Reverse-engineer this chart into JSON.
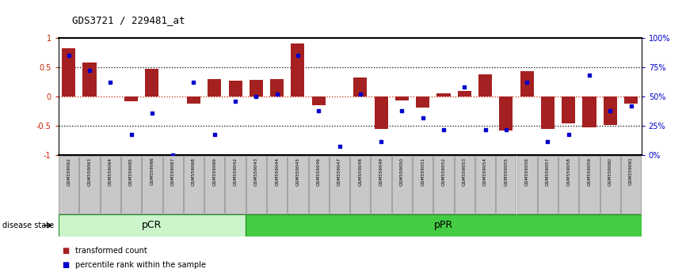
{
  "title": "GDS3721 / 229481_at",
  "samples": [
    "GSM559062",
    "GSM559063",
    "GSM559064",
    "GSM559065",
    "GSM559066",
    "GSM559067",
    "GSM559068",
    "GSM559069",
    "GSM559042",
    "GSM559043",
    "GSM559044",
    "GSM559045",
    "GSM559046",
    "GSM559047",
    "GSM559048",
    "GSM559049",
    "GSM559050",
    "GSM559051",
    "GSM559052",
    "GSM559053",
    "GSM559054",
    "GSM559055",
    "GSM559056",
    "GSM559057",
    "GSM559058",
    "GSM559059",
    "GSM559060",
    "GSM559061"
  ],
  "red_bars": [
    0.82,
    0.58,
    0.0,
    -0.08,
    0.47,
    0.0,
    -0.12,
    0.3,
    0.27,
    0.28,
    0.3,
    0.9,
    -0.15,
    0.0,
    0.32,
    -0.55,
    -0.06,
    -0.18,
    0.05,
    0.1,
    0.38,
    -0.58,
    0.43,
    -0.55,
    -0.45,
    -0.52,
    -0.48,
    -0.12
  ],
  "blue_dots_pct": [
    85,
    72,
    62,
    18,
    36,
    0,
    62,
    18,
    46,
    50,
    52,
    85,
    38,
    8,
    52,
    12,
    38,
    32,
    22,
    58,
    22,
    22,
    62,
    12,
    18,
    68,
    38,
    42
  ],
  "pCR_count": 9,
  "pPR_count": 19,
  "bar_color": "#a52020",
  "dot_color": "#0000cc",
  "background_color": "#ffffff",
  "pcr_color": "#ccf5cc",
  "ppr_color": "#44cc44",
  "label_color_red": "#cc2200",
  "label_color_blue": "#0000cc",
  "ylim": [
    -1.0,
    1.0
  ],
  "left_ticks": [
    -1,
    -0.5,
    0,
    0.5,
    1
  ],
  "left_tick_labels": [
    "-1",
    "-0.5",
    "0",
    "0.5",
    "1"
  ],
  "right_tick_pct": [
    0,
    25,
    50,
    75,
    100
  ],
  "right_tick_labels": [
    "0%",
    "25%",
    "50%",
    "75%",
    "100%"
  ],
  "dotted_lines": [
    -0.5,
    0.5
  ],
  "red_dotted_line": 0.0,
  "legend_red": "transformed count",
  "legend_blue": "percentile rank within the sample",
  "disease_state_label": "disease state",
  "pcr_label": "pCR",
  "ppr_label": "pPR"
}
